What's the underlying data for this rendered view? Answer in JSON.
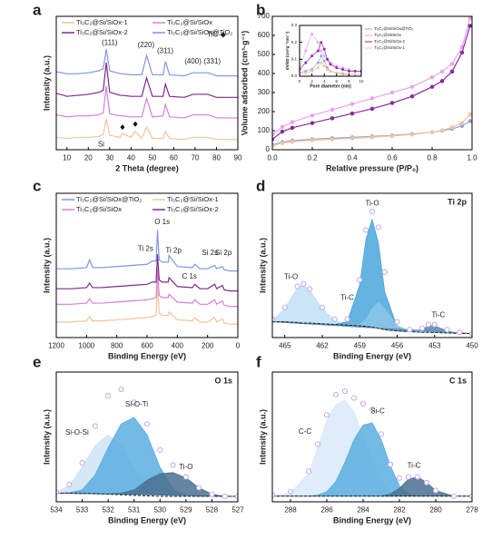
{
  "chart_data": [
    {
      "type": "line",
      "panel": "a",
      "xlabel": "2 Theta (degree)",
      "ylabel": "Intensity (a.u.)",
      "xlim": [
        5,
        90
      ],
      "ylim": [
        0,
        130
      ],
      "xticks": [
        10,
        20,
        30,
        40,
        50,
        60,
        70,
        80,
        90
      ],
      "x": [
        5,
        10,
        15,
        20,
        25,
        27,
        28.4,
        30,
        35,
        36,
        40,
        42,
        45,
        47.3,
        50,
        55,
        56.1,
        58,
        65,
        69,
        76,
        80,
        90
      ],
      "series": [
        {
          "name": "Ti₃C₂@Si/SiOx-1",
          "color": "#f0c49c",
          "style": "line",
          "values": [
            12,
            11,
            12,
            12,
            13,
            15,
            30,
            14,
            12,
            16,
            12,
            18,
            11,
            22,
            11,
            11,
            18,
            11,
            10,
            12,
            12,
            10,
            10
          ]
        },
        {
          "name": "Ti₃C₂@Si/SiOx",
          "color": "#d77fd6",
          "style": "line",
          "values": [
            34,
            32,
            33,
            33,
            34,
            36,
            62,
            35,
            33,
            33,
            32,
            32,
            32,
            50,
            32,
            33,
            44,
            32,
            31,
            34,
            34,
            31,
            31
          ]
        },
        {
          "name": "Ti₃C₂@Si/SiOx-2",
          "color": "#7b2a8a",
          "style": "line",
          "values": [
            55,
            52,
            53,
            54,
            56,
            58,
            85,
            56,
            53,
            53,
            52,
            52,
            52,
            70,
            52,
            52,
            64,
            52,
            51,
            54,
            54,
            51,
            51
          ]
        },
        {
          "name": "Ti₃C₂@Si/SiOx@TiO₂",
          "color": "#7f95e0",
          "style": "line",
          "values": [
            76,
            74,
            74,
            75,
            77,
            79,
            98,
            77,
            74,
            74,
            73,
            73,
            73,
            92,
            73,
            73,
            86,
            73,
            72,
            75,
            75,
            72,
            72
          ]
        }
      ],
      "annotations": [
        "(111)",
        "(220)",
        "(311)",
        "(400)",
        "(331)",
        "Si",
        "TiC-◆"
      ]
    },
    {
      "type": "line",
      "panel": "b",
      "xlabel": "Relative pressure (P/P₀)",
      "ylabel": "Volume adsorbed (cm³·g⁻¹)",
      "xlim": [
        0,
        1
      ],
      "ylim": [
        0,
        700
      ],
      "xticks": [
        {
          "value": 0,
          "label": "0.0"
        },
        0.2,
        0.4,
        0.6,
        0.8,
        {
          "value": 1,
          "label": "1.0"
        }
      ],
      "yticks": [
        0,
        100,
        200,
        300,
        400,
        500,
        600,
        700
      ],
      "x": [
        0,
        0.05,
        0.1,
        0.2,
        0.3,
        0.4,
        0.5,
        0.6,
        0.7,
        0.8,
        0.85,
        0.9,
        0.95,
        0.99
      ],
      "series": [
        {
          "color": "#8fa3e6",
          "style": "line-markers",
          "values": [
            25,
            40,
            48,
            55,
            60,
            65,
            70,
            75,
            82,
            92,
            100,
            110,
            125,
            150
          ]
        },
        {
          "color": "#e6a6e6",
          "style": "line-markers",
          "values": [
            80,
            120,
            145,
            180,
            210,
            240,
            270,
            300,
            330,
            380,
            410,
            450,
            540,
            690
          ]
        },
        {
          "color": "#8b2a9a",
          "style": "line-markers",
          "values": [
            55,
            95,
            115,
            140,
            165,
            190,
            215,
            245,
            280,
            330,
            360,
            410,
            510,
            650
          ]
        },
        {
          "color": "#f0c49c",
          "style": "line-markers",
          "values": [
            20,
            35,
            42,
            50,
            55,
            60,
            66,
            72,
            80,
            92,
            102,
            118,
            140,
            185
          ]
        }
      ]
    },
    {
      "type": "line",
      "panel": "c",
      "xlabel": "Binding Energy (eV)",
      "ylabel": "Intensity (a.u.)",
      "xlim": [
        1200,
        0
      ],
      "ylim": [
        0,
        130
      ],
      "xticks": [
        1200,
        1000,
        800,
        600,
        400,
        200,
        0
      ],
      "x": [
        1200,
        1100,
        1000,
        980,
        960,
        900,
        800,
        700,
        600,
        565,
        540,
        531,
        520,
        500,
        460,
        455,
        400,
        300,
        285,
        250,
        200,
        153,
        140,
        102,
        90,
        50,
        0
      ],
      "series": [
        {
          "name": "Ti₃C₂@Si/SiOx@TiO₂",
          "color": "#7f95e0",
          "style": "line",
          "values": [
            62,
            62,
            63,
            70,
            63,
            63,
            64,
            65,
            66,
            69,
            69,
            97,
            70,
            68,
            68,
            74,
            64,
            63,
            66,
            62,
            62,
            65,
            62,
            64,
            61,
            60,
            60
          ]
        },
        {
          "name": "Ti₃C₂@Si/SiOx-1",
          "color": "#f0c49c",
          "style": "line",
          "values": [
            14,
            14,
            15,
            19,
            15,
            15,
            16,
            17,
            18,
            19,
            20,
            50,
            22,
            20,
            20,
            23,
            16,
            15,
            18,
            14,
            14,
            18,
            14,
            17,
            13,
            12,
            12
          ]
        },
        {
          "name": "Ti₃C₂@Si/SiOx",
          "color": "#d77fd6",
          "style": "line",
          "values": [
            30,
            30,
            31,
            35,
            31,
            31,
            32,
            33,
            34,
            35,
            36,
            62,
            38,
            36,
            36,
            39,
            32,
            31,
            34,
            30,
            30,
            34,
            30,
            33,
            29,
            28,
            28
          ]
        },
        {
          "name": "Ti₃C₂@Si/SiOx-2",
          "color": "#7b2a8a",
          "style": "line",
          "values": [
            44,
            44,
            45,
            49,
            45,
            45,
            46,
            47,
            48,
            50,
            50,
            75,
            52,
            50,
            50,
            54,
            46,
            45,
            48,
            44,
            44,
            48,
            44,
            47,
            43,
            42,
            42
          ]
        }
      ],
      "annotations": [
        "O 1s",
        "Ti 2s",
        "Ti 2p",
        "C 1s",
        "Si 2s",
        "Si 2p"
      ]
    },
    {
      "type": "line",
      "panel": "d",
      "title": "Ti 2p",
      "xlabel": "Binding Energy (eV)",
      "ylabel": "Intensity (a.u.)",
      "xlim": [
        466,
        450
      ],
      "ylim": [
        0,
        110
      ],
      "xticks": [
        465,
        462,
        459,
        456,
        453,
        450
      ],
      "x": [
        466,
        465,
        464,
        463.5,
        463,
        462,
        461,
        460,
        459,
        458.5,
        458,
        457.5,
        457,
        456,
        455,
        454,
        453.5,
        453,
        452,
        451,
        450
      ],
      "series": [
        {
          "color": "#bfe0f5",
          "style": "fill",
          "values": [
            13,
            22,
            38,
            40,
            36,
            22,
            13,
            10,
            9,
            8.5,
            8,
            7,
            6,
            5,
            4.5,
            4,
            4,
            3.8,
            3.5,
            3.2,
            3
          ]
        },
        {
          "color": "#4aa6dc",
          "style": "fill",
          "values": [
            12,
            12,
            11.5,
            11,
            11,
            10.5,
            10,
            12,
            40,
            75,
            90,
            72,
            35,
            8,
            4.5,
            4,
            4,
            3.8,
            3.5,
            3.2,
            3
          ]
        },
        {
          "color": "#8cc6ea",
          "style": "fill",
          "values": [
            12,
            12,
            11.5,
            11,
            11,
            10.5,
            10,
            9.5,
            10,
            14,
            22,
            27,
            22,
            9,
            5,
            4,
            4,
            3.8,
            3.5,
            3.2,
            3
          ]
        },
        {
          "color": "#5b86a8",
          "style": "fill",
          "values": [
            12,
            12,
            11.5,
            11,
            11,
            10.5,
            10,
            9.5,
            9,
            8.5,
            8,
            7,
            6,
            5,
            4.5,
            6,
            9,
            9,
            5,
            3.2,
            3
          ]
        },
        {
          "color": "#222222",
          "style": "dashed",
          "values": [
            12,
            12,
            11.5,
            11,
            11,
            10.5,
            10,
            9.5,
            9,
            8.5,
            8,
            7,
            6,
            5,
            4.5,
            4,
            4,
            3.8,
            3.5,
            3.2,
            3
          ]
        },
        {
          "color": "#b9a3ea",
          "style": "markers",
          "values": [
            14,
            23,
            39,
            41,
            37,
            23,
            14,
            14,
            44,
            82,
            96,
            84,
            50,
            12,
            6,
            7,
            10,
            10,
            6,
            4,
            3
          ]
        }
      ],
      "annotations": [
        "Ti-O",
        "Ti-O",
        "Ti-C",
        "Ti-C"
      ]
    },
    {
      "type": "line",
      "panel": "e",
      "title": "O 1s",
      "xlabel": "Binding Energy (eV)",
      "ylabel": "Intensity (a.u.)",
      "xlim": [
        534,
        527
      ],
      "ylim": [
        0,
        120
      ],
      "xticks": [
        534,
        533,
        532,
        531,
        530,
        529,
        528,
        527
      ],
      "x": [
        534,
        533.5,
        533,
        532.5,
        532,
        531.5,
        531,
        530.5,
        530,
        529.5,
        529,
        528.5,
        528,
        527.5,
        527
      ],
      "series": [
        {
          "color": "#cfe3f5",
          "style": "fill",
          "values": [
            9,
            15,
            32,
            52,
            62,
            52,
            30,
            12,
            6,
            5,
            5,
            5,
            5,
            5,
            5
          ]
        },
        {
          "color": "#5aaee0",
          "style": "fill",
          "values": [
            8,
            8.5,
            11,
            25,
            50,
            72,
            78,
            62,
            32,
            12,
            6,
            5,
            5,
            5,
            5
          ]
        },
        {
          "color": "#4a7090",
          "style": "fill",
          "values": [
            8,
            8,
            7.8,
            7.5,
            7.2,
            8,
            11,
            20,
            26,
            27,
            22,
            13,
            7,
            5,
            5
          ]
        },
        {
          "color": "#222222",
          "style": "dashed",
          "values": [
            8,
            8,
            7.8,
            7.5,
            7,
            6.5,
            6,
            5.5,
            5,
            5,
            5,
            5,
            5,
            5,
            5
          ]
        },
        {
          "color": "#b9a3ea",
          "style": "markers",
          "values": [
            9,
            16,
            36,
            70,
            98,
            104,
            92,
            72,
            48,
            34,
            23,
            13,
            7,
            5,
            5
          ]
        }
      ],
      "annotations": [
        "Si-O-Si",
        "Si-O-Ti",
        "Ti-O"
      ]
    },
    {
      "type": "line",
      "panel": "f",
      "title": "C 1s",
      "xlabel": "Binding Energy (eV)",
      "ylabel": "Intensity (a.u.)",
      "xlim": [
        289,
        278
      ],
      "ylim": [
        0,
        115
      ],
      "xticks": [
        288,
        286,
        284,
        282,
        280,
        278
      ],
      "x": [
        289,
        288,
        287,
        286.5,
        286,
        285.5,
        285,
        284.5,
        284,
        283.5,
        283,
        282.5,
        282,
        281.5,
        281,
        280.5,
        280,
        279,
        278
      ],
      "series": [
        {
          "color": "#d8eaf8",
          "style": "fill",
          "values": [
            5,
            8,
            25,
            48,
            72,
            86,
            90,
            80,
            58,
            35,
            18,
            9,
            6,
            5,
            5,
            5,
            5,
            5,
            5
          ]
        },
        {
          "color": "#5aaee0",
          "style": "fill",
          "values": [
            5,
            5,
            5,
            6,
            9,
            18,
            35,
            55,
            68,
            70,
            55,
            32,
            14,
            7,
            5,
            5,
            5,
            5,
            5
          ]
        },
        {
          "color": "#4a7090",
          "style": "fill",
          "values": [
            5,
            5,
            5,
            5,
            5,
            5,
            5,
            5,
            5,
            5,
            5,
            7,
            12,
            20,
            22,
            17,
            10,
            5,
            5
          ]
        },
        {
          "color": "#222222",
          "style": "dashed",
          "values": [
            5,
            5,
            5,
            5,
            5,
            5,
            5,
            5,
            5,
            5,
            5,
            5,
            5,
            5,
            5,
            5,
            5,
            5,
            5
          ]
        },
        {
          "color": "#b9a3ea",
          "style": "markers",
          "values": [
            6,
            9,
            27,
            51,
            77,
            95,
            98,
            92,
            87,
            82,
            60,
            33,
            21,
            22,
            22,
            17,
            10,
            5,
            5
          ]
        }
      ],
      "annotations": [
        "C-C",
        "Si-C",
        "Ti-C"
      ]
    },
    {
      "type": "line",
      "xlabel": "Pore diameter (nm)",
      "ylabel": "dV/dD (cm³g⁻¹nm⁻¹)",
      "xlim": [
        0,
        10
      ],
      "ylim": [
        0,
        0.3
      ],
      "xticks": [
        0,
        2,
        4,
        6,
        8,
        10
      ],
      "yticks": [
        {
          "value": 0,
          "label": "0.0"
        },
        0.1,
        0.2,
        0.3
      ],
      "x": [
        0,
        1,
        2,
        3,
        3.5,
        4,
        4.5,
        5,
        6,
        7,
        8,
        9,
        10
      ],
      "series": [
        {
          "name": "Ti₃C₂@Si/SiOx@TiO₂",
          "color": "#8fa3e6",
          "style": "line-markers",
          "values": [
            0.02,
            0.03,
            0.04,
            0.08,
            0.12,
            0.09,
            0.05,
            0.03,
            0.02,
            0.015,
            0.01,
            0.01,
            0.01
          ]
        },
        {
          "name": "Ti₃C₂@Si/SiOx",
          "color": "#e6a6e6",
          "style": "line-markers",
          "values": [
            0.05,
            0.15,
            0.25,
            0.2,
            0.15,
            0.12,
            0.1,
            0.08,
            0.06,
            0.05,
            0.04,
            0.03,
            0.03
          ]
        },
        {
          "name": "Ti₃C₂@Si/SiOx-2",
          "color": "#8b2a9a",
          "style": "line-markers",
          "values": [
            0.04,
            0.08,
            0.12,
            0.15,
            0.2,
            0.16,
            0.1,
            0.07,
            0.05,
            0.04,
            0.03,
            0.03,
            0.03
          ]
        },
        {
          "name": "Ti₃C₂@Si/SiOx-1",
          "color": "#f0c49c",
          "style": "line-markers",
          "values": [
            0.01,
            0.02,
            0.03,
            0.05,
            0.08,
            0.06,
            0.04,
            0.03,
            0.02,
            0.01,
            0.01,
            0.01,
            0.01
          ]
        }
      ]
    }
  ]
}
